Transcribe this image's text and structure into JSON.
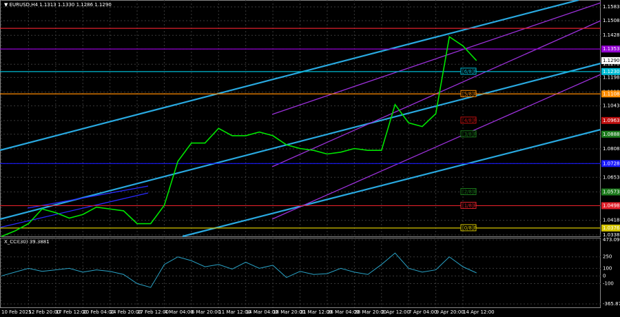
{
  "chart_data": {
    "type": "line",
    "title": "▼ EURUSD,H4  1.1313 1.1330 1.1286 1.1290",
    "categories": [
      "10 Feb 2025",
      null,
      "12 Feb 20:00",
      null,
      "17 Feb 12:00",
      null,
      "20 Feb 04:00",
      null,
      "24 Feb 20:00",
      null,
      "27 Feb 12:00",
      null,
      "4 Mar 04:00",
      null,
      "6 Mar 20:00",
      null,
      "11 Mar 12:00",
      null,
      "14 Mar 04:00",
      null,
      "18 Mar 20:00",
      null,
      "21 Mar 12:00",
      null,
      "26 Mar 04:00",
      null,
      "28 Mar 20:00",
      null,
      "2 Apr 12:00",
      null,
      "7 Apr 04:00",
      null,
      "9 Apr 20:00",
      null,
      "14 Apr 12:00",
      null
    ],
    "series": [
      {
        "color": "#00e600",
        "values": [
          1.033,
          1.036,
          1.04,
          1.048,
          1.046,
          1.043,
          1.045,
          1.049,
          1.048,
          1.047,
          1.04,
          1.04,
          1.05,
          1.074,
          1.084,
          1.084,
          1.092,
          1.088,
          1.088,
          1.09,
          1.088,
          1.083,
          1.081,
          1.08,
          1.078,
          1.079,
          1.081,
          1.08,
          1.08,
          1.105,
          1.095,
          1.093,
          1.1,
          1.142,
          1.137,
          1.129
        ]
      }
    ],
    "ylim": [
      1.0338,
      1.1583
    ],
    "yticks": [
      1.1583,
      1.1508,
      1.1428,
      1.1353,
      {
        "value": 1.127,
        "label": "1.1270"
      },
      1.1198,
      1.1118,
      1.1043,
      1.0963,
      1.0888,
      1.0808,
      1.0728,
      1.0653,
      1.0573,
      1.0498,
      1.0418,
      1.0338
    ],
    "grid": true,
    "current_price": {
      "value": 1.129,
      "label": "1.1290"
    },
    "levels": [
      {
        "value": 1.1466,
        "color": "#e0202a",
        "line": true
      },
      {
        "value": 1.1353,
        "label": "1.1353",
        "color": "#9400d3",
        "line": true
      },
      {
        "value": 1.123,
        "label": "1.1230",
        "tag": "[6/8]P",
        "color": "#00bcd4",
        "line": true
      },
      {
        "value": 1.1108,
        "label": "1.1108",
        "tag": "[5/8]P",
        "color": "#ff8c00",
        "line": true
      },
      {
        "value": 1.0963,
        "label": "1.0963",
        "tag": "[4/8]P",
        "color": "#c01010",
        "line": false
      },
      {
        "value": 1.0888,
        "label": "1.0888",
        "tag": "[3/8]P",
        "color": "#1c7a1c",
        "line": false
      },
      {
        "value": 1.0728,
        "label": "1.0728",
        "color": "#1a1aff",
        "line": true
      },
      {
        "value": 1.0573,
        "label": "1.0573",
        "tag": "[2/8]P",
        "color": "#1c7a1c",
        "line": false
      },
      {
        "value": 1.0498,
        "label": "1.0498",
        "tag": "[1/8]P",
        "color": "#e0202a",
        "line": true
      },
      {
        "value": 1.0376,
        "label": "1.0376",
        "tag": "[0/8]P",
        "color": "#d4c400",
        "line": true
      }
    ],
    "indicator": {
      "title": "X_CCI(30) 39.3881",
      "color": "#29a3c7",
      "values": [
        0,
        50,
        100,
        60,
        80,
        100,
        50,
        80,
        60,
        20,
        -100,
        -150,
        150,
        250,
        200,
        120,
        150,
        90,
        180,
        100,
        140,
        -20,
        60,
        20,
        30,
        100,
        50,
        20,
        150,
        300,
        100,
        50,
        80,
        250,
        120,
        40
      ],
      "ylim": [
        -365.8779,
        473.0924
      ],
      "yticks": [
        473.0924,
        250,
        100,
        0,
        -100,
        -365.8779
      ]
    }
  }
}
